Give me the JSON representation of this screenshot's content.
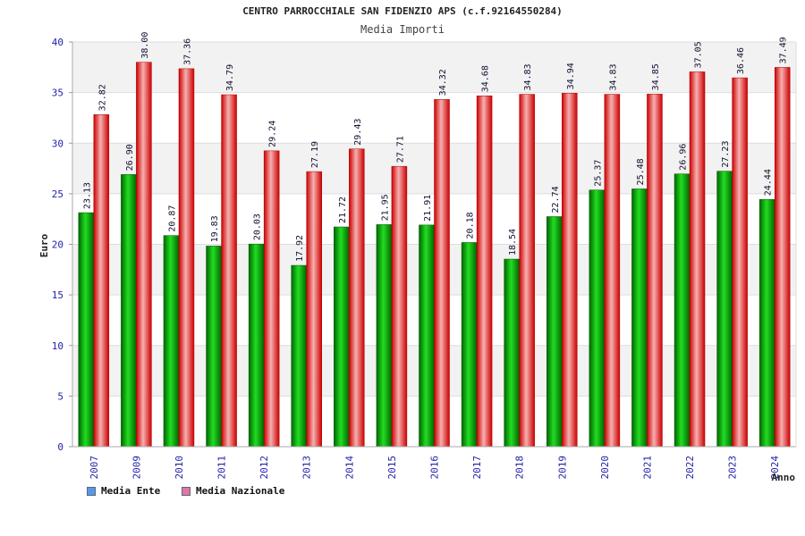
{
  "chart_data": {
    "type": "bar",
    "title": "CENTRO PARROCCHIALE SAN FIDENZIO APS (c.f.92164550284)",
    "subtitle": "Media Importi",
    "xlabel": "Anno",
    "ylabel": "Euro",
    "ylim": [
      0,
      40
    ],
    "yticks": [
      "0",
      "5",
      "10",
      "15",
      "20",
      "25",
      "30",
      "35",
      "40"
    ],
    "categories": [
      "2007",
      "2009",
      "2010",
      "2011",
      "2012",
      "2013",
      "2014",
      "2015",
      "2016",
      "2017",
      "2018",
      "2019",
      "2020",
      "2021",
      "2022",
      "2023",
      "2024"
    ],
    "series": [
      {
        "name": "Media Ente",
        "color": "#00aa00",
        "legend_color": "#5599ee",
        "values": [
          23.13,
          26.9,
          20.87,
          19.83,
          20.03,
          17.92,
          21.72,
          21.95,
          21.91,
          20.18,
          18.54,
          22.74,
          25.37,
          25.48,
          26.96,
          27.23,
          24.44
        ],
        "labels": [
          "23.13",
          "26.90",
          "20.87",
          "19.83",
          "20.03",
          "17.92",
          "21.72",
          "21.95",
          "21.91",
          "20.18",
          "18.54",
          "22.74",
          "25.37",
          "25.48",
          "26.96",
          "27.23",
          "24.44"
        ]
      },
      {
        "name": "Media Nazionale",
        "color": "#ee1111",
        "legend_color": "#dd77aa",
        "values": [
          32.82,
          38.0,
          37.36,
          34.79,
          29.24,
          27.19,
          29.43,
          27.71,
          34.32,
          34.68,
          34.83,
          34.94,
          34.83,
          34.85,
          37.05,
          36.46,
          37.49
        ],
        "labels": [
          "32.82",
          "38.00",
          "37.36",
          "34.79",
          "29.24",
          "27.19",
          "29.43",
          "27.71",
          "34.32",
          "34.68",
          "34.83",
          "34.94",
          "34.83",
          "34.85",
          "37.05",
          "36.46",
          "37.49"
        ]
      }
    ],
    "grid": true,
    "legend": "bottom-left"
  }
}
